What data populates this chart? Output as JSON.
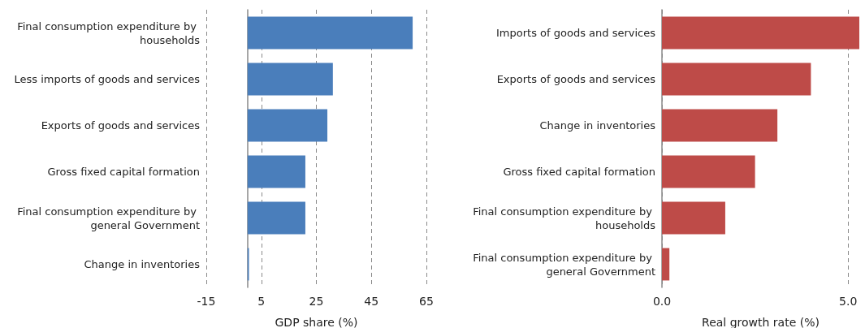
{
  "chart_data": [
    {
      "type": "bar",
      "orientation": "horizontal",
      "xlabel": "GDP share (%)",
      "categories": [
        "Final consumption expenditure by households",
        "Less imports of goods and services",
        "Exports of goods and services",
        "Gross fixed capital formation",
        "Final consumption expenditure by general Government",
        "Change in inventories"
      ],
      "values": [
        60,
        31,
        29,
        21,
        21,
        0.5
      ],
      "color": "#4a7ebb",
      "xlim": [
        -15,
        65
      ],
      "xticks": [
        -15,
        5,
        25,
        45,
        65
      ],
      "grid": "x"
    },
    {
      "type": "bar",
      "orientation": "horizontal",
      "xlabel": "Real growth rate (%)",
      "categories": [
        "Imports of goods and services",
        "Exports of goods and services",
        "Change in inventories",
        "Gross fixed capital formation",
        "Final consumption expenditure by households",
        "Final consumption expenditure by general Government"
      ],
      "values": [
        5.3,
        4.0,
        3.1,
        2.5,
        1.7,
        0.2
      ],
      "color": "#be4b48",
      "xlim": [
        0,
        5.3
      ],
      "xticks": [
        {
          "value": 0,
          "label": "0.0"
        },
        {
          "value": 5,
          "label": "5.0"
        }
      ],
      "grid": "x"
    }
  ]
}
